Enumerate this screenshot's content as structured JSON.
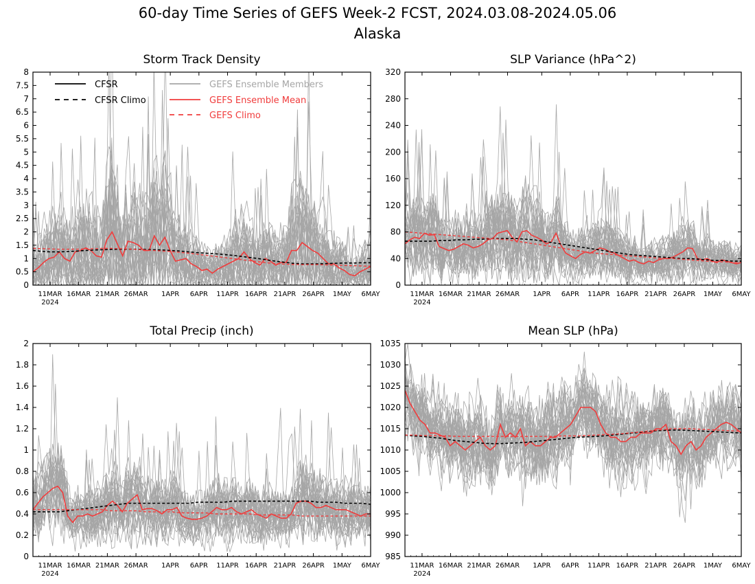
{
  "title": {
    "line1": "60-day Time Series of GEFS Week-2 FCST, 2024.03.08-2024.05.06",
    "line2": "Alaska"
  },
  "colors": {
    "cfsr": "#000000",
    "members": "#a6a6a6",
    "ensemble_mean": "#f03c3c",
    "gefs_climo": "#f03c3c"
  },
  "legend": {
    "cfsr": "CFSR",
    "cfsr_climo": "CFSR Climo",
    "members": "GEFS Ensemble Members",
    "mean": "GEFS Ensemble Mean",
    "gefs_climo": "GEFS Climo"
  },
  "x_ticks": [
    "11MAR",
    "16MAR",
    "21MAR",
    "26MAR",
    "1APR",
    "6APR",
    "11APR",
    "16APR",
    "21APR",
    "26APR",
    "1MAY",
    "6MAY"
  ],
  "x_year_label": "2024",
  "chart_data": [
    {
      "id": "storm",
      "type": "line",
      "title": "Storm Track Density",
      "x_start": "2024-03-08",
      "x_end": "2024-05-06",
      "ylim": [
        0,
        8
      ],
      "y_ticks": [
        "0",
        "0.5",
        "1",
        "1.5",
        "2",
        "2.5",
        "3",
        "3.5",
        "4",
        "4.5",
        "5",
        "5.5",
        "6",
        "6.5",
        "7",
        "7.5",
        "8"
      ],
      "members_count": 30,
      "series": [
        {
          "name": "GEFS Ensemble Mean",
          "style": "mean",
          "values": [
            0.5,
            0.65,
            0.85,
            1.0,
            1.05,
            1.25,
            1.0,
            0.9,
            1.25,
            1.3,
            1.4,
            1.3,
            1.1,
            1.05,
            1.7,
            2.0,
            1.55,
            1.1,
            1.65,
            1.6,
            1.5,
            1.3,
            1.3,
            1.85,
            1.5,
            1.8,
            1.3,
            0.9,
            0.95,
            1.0,
            0.8,
            0.7,
            0.55,
            0.6,
            0.45,
            0.6,
            0.7,
            0.8,
            0.9,
            1.0,
            1.25,
            1.0,
            0.85,
            0.75,
            1.0,
            0.9,
            0.75,
            0.85,
            0.85,
            1.3,
            1.3,
            1.6,
            1.45,
            1.3,
            1.2,
            1.0,
            0.8,
            0.8,
            0.65,
            0.55,
            0.4,
            0.35,
            0.5,
            0.6,
            0.7
          ]
        },
        {
          "name": "CFSR Climo",
          "style": "cfsr_climo",
          "values": [
            1.3,
            1.27,
            1.25,
            1.25,
            1.26,
            1.28,
            1.3,
            1.32,
            1.33,
            1.34,
            1.35,
            1.35,
            1.35,
            1.34,
            1.33,
            1.32,
            1.3,
            1.28,
            1.25,
            1.22,
            1.2,
            1.18,
            1.15,
            1.12,
            1.08,
            1.04,
            1.0,
            0.95,
            0.9,
            0.86,
            0.82,
            0.8,
            0.8,
            0.8,
            0.81,
            0.82,
            0.83,
            0.83,
            0.84,
            0.84
          ]
        },
        {
          "name": "GEFS Climo",
          "style": "gefs_climo",
          "values": [
            1.38,
            1.37,
            1.36,
            1.35,
            1.35,
            1.35,
            1.36,
            1.37,
            1.38,
            1.38,
            1.37,
            1.36,
            1.34,
            1.32,
            1.3,
            1.28,
            1.26,
            1.23,
            1.2,
            1.16,
            1.12,
            1.08,
            1.04,
            1.0,
            0.96,
            0.92,
            0.88,
            0.84,
            0.81,
            0.79,
            0.78,
            0.77,
            0.77,
            0.77,
            0.76,
            0.75,
            0.74,
            0.73,
            0.72,
            0.71
          ]
        }
      ]
    },
    {
      "id": "slpvar",
      "type": "line",
      "title": "SLP Variance (hPa^2)",
      "x_start": "2024-03-08",
      "x_end": "2024-05-06",
      "ylim": [
        0,
        320
      ],
      "y_ticks": [
        "0",
        "40",
        "80",
        "120",
        "160",
        "200",
        "240",
        "280",
        "320"
      ],
      "members_count": 30,
      "series": [
        {
          "name": "GEFS Ensemble Mean",
          "style": "mean",
          "values": [
            62,
            68,
            72,
            70,
            78,
            75,
            76,
            58,
            55,
            52,
            54,
            58,
            62,
            60,
            56,
            58,
            62,
            68,
            70,
            78,
            80,
            82,
            72,
            65,
            80,
            82,
            75,
            72,
            68,
            62,
            65,
            78,
            60,
            48,
            44,
            40,
            46,
            50,
            48,
            52,
            56,
            54,
            50,
            48,
            44,
            40,
            36,
            38,
            34,
            32,
            36,
            34,
            38,
            40,
            40,
            42,
            46,
            50,
            56,
            55,
            40,
            38,
            40,
            36,
            34,
            38,
            36,
            34,
            32,
            34
          ]
        },
        {
          "name": "CFSR Climo",
          "style": "cfsr_climo",
          "values": [
            66,
            66,
            66,
            66,
            67,
            67,
            68,
            68,
            69,
            69,
            70,
            70,
            70,
            70,
            69,
            68,
            66,
            64,
            62,
            60,
            58,
            56,
            54,
            52,
            50,
            48,
            46,
            45,
            44,
            43,
            42,
            41,
            40,
            40,
            39,
            38,
            37,
            37,
            36,
            36
          ]
        },
        {
          "name": "GEFS Climo",
          "style": "gefs_climo",
          "values": [
            80,
            79,
            78,
            77,
            76,
            75,
            74,
            73,
            72,
            71,
            70,
            69,
            68,
            66,
            64,
            62,
            60,
            58,
            56,
            54,
            52,
            50,
            48,
            47,
            46,
            45,
            44,
            43,
            42,
            41,
            40,
            40,
            39,
            38,
            37,
            36,
            35,
            35,
            34,
            34
          ]
        }
      ]
    },
    {
      "id": "precip",
      "type": "line",
      "title": "Total Precip (inch)",
      "x_start": "2024-03-08",
      "x_end": "2024-05-06",
      "ylim": [
        0,
        2
      ],
      "y_ticks": [
        "0",
        "0.2",
        "0.4",
        "0.6",
        "0.8",
        "1",
        "1.2",
        "1.4",
        "1.6",
        "1.8",
        "2"
      ],
      "members_count": 30,
      "series": [
        {
          "name": "GEFS Ensemble Mean",
          "style": "mean",
          "values": [
            0.44,
            0.5,
            0.56,
            0.6,
            0.64,
            0.66,
            0.6,
            0.38,
            0.32,
            0.38,
            0.38,
            0.4,
            0.38,
            0.4,
            0.42,
            0.48,
            0.52,
            0.48,
            0.42,
            0.5,
            0.54,
            0.58,
            0.44,
            0.45,
            0.45,
            0.43,
            0.4,
            0.44,
            0.44,
            0.46,
            0.38,
            0.36,
            0.35,
            0.35,
            0.36,
            0.38,
            0.42,
            0.46,
            0.44,
            0.44,
            0.46,
            0.42,
            0.4,
            0.42,
            0.44,
            0.4,
            0.38,
            0.36,
            0.4,
            0.38,
            0.36,
            0.36,
            0.4,
            0.5,
            0.52,
            0.52,
            0.5,
            0.46,
            0.46,
            0.48,
            0.46,
            0.44,
            0.44,
            0.44,
            0.42,
            0.4,
            0.38,
            0.4,
            0.4
          ]
        },
        {
          "name": "CFSR Climo",
          "style": "cfsr_climo",
          "values": [
            0.42,
            0.42,
            0.42,
            0.42,
            0.43,
            0.44,
            0.45,
            0.46,
            0.47,
            0.48,
            0.49,
            0.5,
            0.5,
            0.5,
            0.5,
            0.5,
            0.5,
            0.5,
            0.5,
            0.51,
            0.51,
            0.51,
            0.51,
            0.52,
            0.52,
            0.52,
            0.52,
            0.52,
            0.52,
            0.52,
            0.52,
            0.52,
            0.52,
            0.51,
            0.51,
            0.51,
            0.5,
            0.5,
            0.5,
            0.49
          ]
        },
        {
          "name": "GEFS Climo",
          "style": "gefs_climo",
          "values": [
            0.44,
            0.44,
            0.44,
            0.44,
            0.44,
            0.44,
            0.44,
            0.44,
            0.44,
            0.43,
            0.43,
            0.43,
            0.43,
            0.42,
            0.42,
            0.42,
            0.42,
            0.41,
            0.41,
            0.41,
            0.41,
            0.4,
            0.4,
            0.4,
            0.4,
            0.4,
            0.39,
            0.39,
            0.39,
            0.39,
            0.39,
            0.38,
            0.38,
            0.38,
            0.38,
            0.38,
            0.38,
            0.38,
            0.38,
            0.38
          ]
        }
      ]
    },
    {
      "id": "meanslp",
      "type": "line",
      "title": "Mean SLP (hPa)",
      "x_start": "2024-03-08",
      "x_end": "2024-05-06",
      "ylim": [
        985,
        1035
      ],
      "y_ticks": [
        "985",
        "990",
        "995",
        "1000",
        "1005",
        "1010",
        "1015",
        "1020",
        "1025",
        "1030",
        "1035"
      ],
      "members_count": 30,
      "series": [
        {
          "name": "GEFS Ensemble Mean",
          "style": "mean",
          "values": [
            1024,
            1021,
            1019,
            1017,
            1016,
            1014,
            1014,
            1013.5,
            1013,
            1011,
            1012,
            1011,
            1010,
            1011,
            1012,
            1013,
            1011,
            1010,
            1011,
            1016,
            1013,
            1014,
            1013,
            1015,
            1011,
            1012,
            1011,
            1011,
            1012,
            1013,
            1013,
            1014,
            1015,
            1016,
            1018,
            1020,
            1020,
            1020,
            1019,
            1016,
            1014,
            1013,
            1013,
            1012,
            1012,
            1013,
            1013,
            1014,
            1014,
            1014,
            1015,
            1015,
            1016,
            1012,
            1011,
            1009,
            1011,
            1012,
            1010,
            1011,
            1013,
            1014,
            1015,
            1016,
            1016.5,
            1016,
            1015,
            1014
          ]
        },
        {
          "name": "CFSR Climo",
          "style": "cfsr_climo",
          "values": [
            1013.5,
            1013.3,
            1013.2,
            1013,
            1012.8,
            1012.5,
            1012.2,
            1012,
            1011.8,
            1011.6,
            1011.5,
            1011.5,
            1011.6,
            1011.7,
            1011.8,
            1012,
            1012.2,
            1012.4,
            1012.6,
            1012.8,
            1013,
            1013.1,
            1013.2,
            1013.3,
            1013.5,
            1013.7,
            1013.9,
            1014.1,
            1014.3,
            1014.5,
            1014.6,
            1014.7,
            1014.7,
            1014.6,
            1014.5,
            1014.4,
            1014.3,
            1014.2,
            1014.1,
            1014
          ]
        },
        {
          "name": "GEFS Climo",
          "style": "gefs_climo",
          "values": [
            1013.5,
            1013.5,
            1013.4,
            1013.4,
            1013.3,
            1013.3,
            1013.2,
            1013.2,
            1013.2,
            1013.2,
            1013.2,
            1013.2,
            1013.2,
            1013.2,
            1013.2,
            1013.2,
            1013.2,
            1013.2,
            1013.3,
            1013.3,
            1013.3,
            1013.4,
            1013.5,
            1013.6,
            1013.7,
            1013.8,
            1014,
            1014.2,
            1014.4,
            1014.6,
            1014.8,
            1015,
            1015,
            1015,
            1014.9,
            1014.8,
            1014.7,
            1014.6,
            1014.5,
            1014.4
          ]
        }
      ]
    }
  ]
}
